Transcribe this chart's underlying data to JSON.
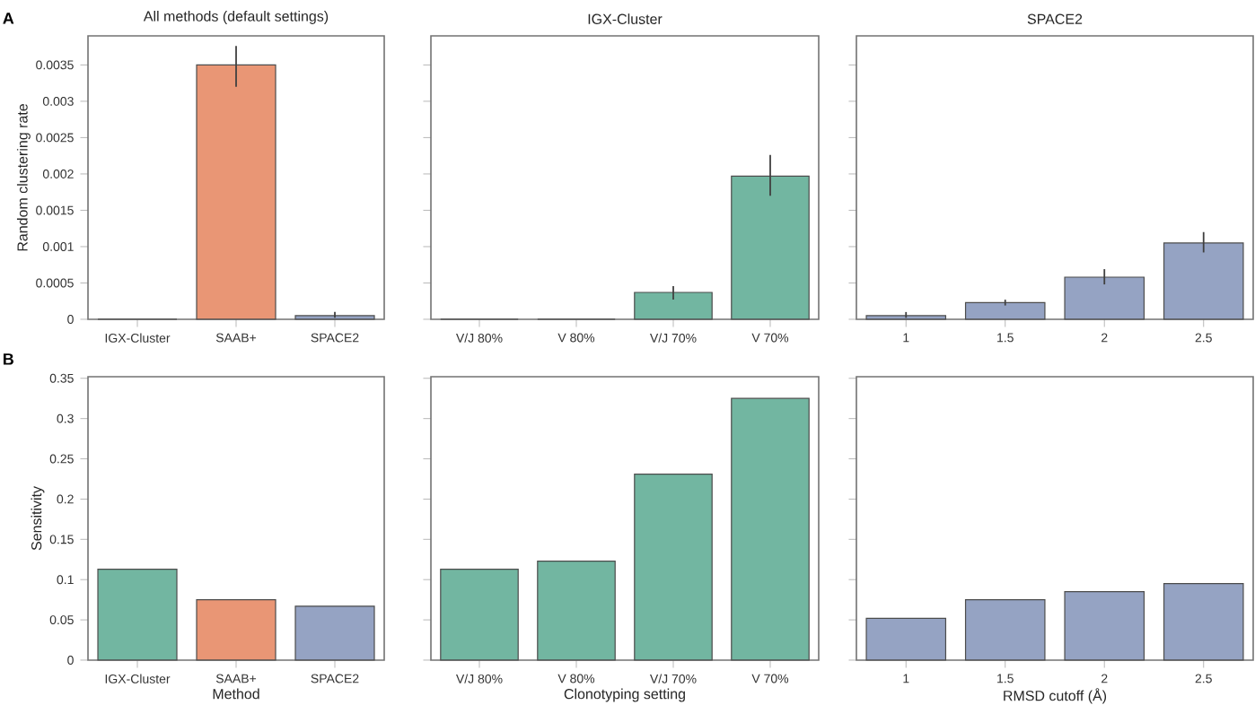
{
  "chart_data": [
    {
      "type": "bar",
      "title": "All methods (default settings)",
      "ylabel": "Random clustering rate",
      "annotations": [
        "A"
      ],
      "categories": [
        "IGX-Cluster",
        "SAAB+",
        "SPACE2"
      ],
      "values": [
        0,
        0.0035,
        5e-05
      ],
      "colors": [
        "#72b6a1",
        "#e99675",
        "#95a3c3"
      ],
      "errors": [
        null,
        [
          0.0032,
          0.00376
        ],
        [
          2e-05,
          0.0001
        ]
      ],
      "ylim": [
        0,
        0.0039
      ],
      "yticks": [
        0,
        0.0005,
        0.001,
        0.0015,
        0.002,
        0.0025,
        0.003,
        0.0035
      ]
    },
    {
      "type": "bar",
      "title": "IGX-Cluster",
      "categories": [
        "V/J 80%",
        "V 80%",
        "V/J 70%",
        "V 70%"
      ],
      "values": [
        0,
        0,
        0.00037,
        0.00197
      ],
      "colors": [
        "#72b6a1",
        "#72b6a1",
        "#72b6a1",
        "#72b6a1"
      ],
      "errors": [
        null,
        null,
        [
          0.00027,
          0.000455
        ],
        [
          0.0017,
          0.00226
        ]
      ],
      "ylim": [
        0,
        0.0039
      ],
      "yticks": [
        0,
        0.0005,
        0.001,
        0.0015,
        0.002,
        0.0025,
        0.003,
        0.0035
      ],
      "tick_labels": "x"
    },
    {
      "type": "bar",
      "title": "SPACE2",
      "categories": [
        "1",
        "1.5",
        "2",
        "2.5"
      ],
      "values": [
        5e-05,
        0.00023,
        0.00058,
        0.00105
      ],
      "colors": [
        "#95a3c3",
        "#95a3c3",
        "#95a3c3",
        "#95a3c3"
      ],
      "errors": [
        [
          2e-05,
          0.0001
        ],
        [
          0.00019,
          0.00027
        ],
        [
          0.00048,
          0.00069
        ],
        [
          0.00092,
          0.0012
        ]
      ],
      "ylim": [
        0,
        0.0039
      ],
      "yticks": [
        0,
        0.0005,
        0.001,
        0.0015,
        0.002,
        0.0025,
        0.003,
        0.0035
      ],
      "tick_labels": "x"
    },
    {
      "type": "bar",
      "xlabel": "Method",
      "ylabel": "Sensitivity",
      "annotations": [
        "B"
      ],
      "categories": [
        "IGX-Cluster",
        "SAAB+",
        "SPACE2"
      ],
      "values": [
        0.113,
        0.075,
        0.067
      ],
      "colors": [
        "#72b6a1",
        "#e99675",
        "#95a3c3"
      ],
      "ylim": [
        0,
        0.352
      ],
      "yticks": [
        0,
        0.05,
        0.1,
        0.15,
        0.2,
        0.25,
        0.3,
        0.35
      ]
    },
    {
      "type": "bar",
      "xlabel": "Clonotyping setting",
      "categories": [
        "V/J 80%",
        "V 80%",
        "V/J 70%",
        "V 70%"
      ],
      "values": [
        0.113,
        0.123,
        0.231,
        0.325
      ],
      "colors": [
        "#72b6a1",
        "#72b6a1",
        "#72b6a1",
        "#72b6a1"
      ],
      "ylim": [
        0,
        0.352
      ],
      "yticks": [
        0,
        0.05,
        0.1,
        0.15,
        0.2,
        0.25,
        0.3,
        0.35
      ],
      "tick_labels": "x"
    },
    {
      "type": "bar",
      "xlabel": "RMSD cutoff (Å)",
      "categories": [
        "1",
        "1.5",
        "2",
        "2.5"
      ],
      "values": [
        0.052,
        0.075,
        0.085,
        0.095
      ],
      "colors": [
        "#95a3c3",
        "#95a3c3",
        "#95a3c3",
        "#95a3c3"
      ],
      "ylim": [
        0,
        0.352
      ],
      "yticks": [
        0,
        0.05,
        0.1,
        0.15,
        0.2,
        0.25,
        0.3,
        0.35
      ],
      "tick_labels": "x"
    }
  ]
}
